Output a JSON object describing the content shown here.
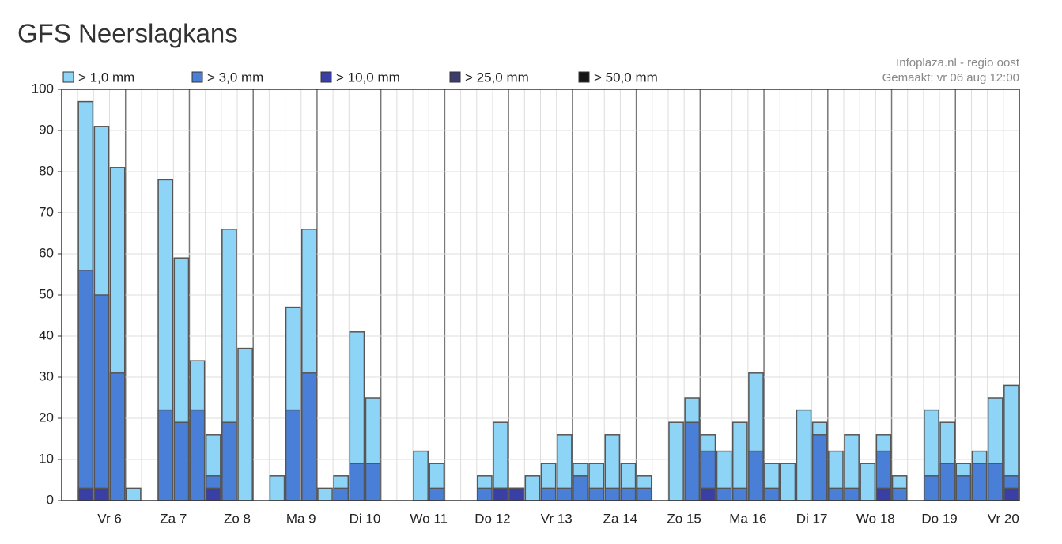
{
  "chart_data": {
    "type": "bar",
    "title": "GFS Neerslagkans",
    "annotations": [
      "Infoplaza.nl - regio oost",
      "Gemaakt: vr 06 aug 12:00"
    ],
    "categories": [
      null,
      null,
      null,
      "Vr 6",
      null,
      null,
      null,
      "Za 7",
      null,
      null,
      null,
      "Zo 8",
      null,
      null,
      null,
      "Ma 9",
      null,
      null,
      null,
      "Di 10",
      null,
      null,
      null,
      "Wo 11",
      null,
      null,
      null,
      "Do 12",
      null,
      null,
      null,
      "Vr 13",
      null,
      null,
      null,
      "Za 14",
      null,
      null,
      null,
      "Zo 15",
      null,
      null,
      null,
      "Ma 16",
      null,
      null,
      null,
      "Di 17",
      null,
      null,
      null,
      "Wo 18",
      null,
      null,
      null,
      "Do 19",
      null,
      null,
      null,
      "Vr 20"
    ],
    "series": [
      {
        "name": "> 1,0 mm",
        "color": "#8dd4f6",
        "values": [
          0,
          97,
          91,
          81,
          3,
          0,
          78,
          59,
          34,
          16,
          66,
          37,
          0,
          6,
          47,
          66,
          3,
          6,
          41,
          25,
          0,
          0,
          12,
          9,
          0,
          0,
          6,
          19,
          3,
          6,
          9,
          16,
          9,
          9,
          16,
          9,
          6,
          0,
          19,
          25,
          16,
          12,
          19,
          31,
          9,
          9,
          22,
          19,
          12,
          16,
          9,
          16,
          6,
          0,
          22,
          19,
          9,
          12,
          25,
          28
        ]
      },
      {
        "name": "> 3,0 mm",
        "color": "#4a7fd8",
        "values": [
          0,
          56,
          50,
          31,
          0,
          0,
          22,
          19,
          22,
          6,
          19,
          0,
          0,
          0,
          22,
          31,
          0,
          3,
          9,
          9,
          0,
          0,
          0,
          3,
          0,
          0,
          3,
          3,
          3,
          0,
          3,
          3,
          6,
          3,
          3,
          3,
          3,
          0,
          0,
          19,
          12,
          3,
          3,
          12,
          3,
          0,
          0,
          16,
          3,
          3,
          0,
          12,
          3,
          0,
          6,
          9,
          6,
          9,
          9,
          6
        ]
      },
      {
        "name": "> 10,0 mm",
        "color": "#3a3fa6",
        "values": [
          0,
          3,
          3,
          0,
          0,
          0,
          0,
          0,
          0,
          3,
          0,
          0,
          0,
          0,
          0,
          0,
          0,
          0,
          0,
          0,
          0,
          0,
          0,
          0,
          0,
          0,
          0,
          3,
          3,
          0,
          0,
          0,
          0,
          0,
          0,
          0,
          0,
          0,
          0,
          0,
          3,
          0,
          0,
          0,
          0,
          0,
          0,
          0,
          0,
          0,
          0,
          3,
          0,
          0,
          0,
          0,
          0,
          0,
          0,
          3
        ]
      },
      {
        "name": "> 25,0 mm",
        "color": "#3c3d6e",
        "values": [
          0,
          0,
          0,
          0,
          0,
          0,
          0,
          0,
          0,
          0,
          0,
          0,
          0,
          0,
          0,
          0,
          0,
          0,
          0,
          0,
          0,
          0,
          0,
          0,
          0,
          0,
          0,
          0,
          0,
          0,
          0,
          0,
          0,
          0,
          0,
          0,
          0,
          0,
          0,
          0,
          0,
          0,
          0,
          0,
          0,
          0,
          0,
          0,
          0,
          0,
          0,
          0,
          0,
          0,
          0,
          0,
          0,
          0,
          0,
          0
        ]
      },
      {
        "name": "> 50,0 mm",
        "color": "#151515",
        "values": [
          0,
          0,
          0,
          0,
          0,
          0,
          0,
          0,
          0,
          0,
          0,
          0,
          0,
          0,
          0,
          0,
          0,
          0,
          0,
          0,
          0,
          0,
          0,
          0,
          0,
          0,
          0,
          0,
          0,
          0,
          0,
          0,
          0,
          0,
          0,
          0,
          0,
          0,
          0,
          0,
          0,
          0,
          0,
          0,
          0,
          0,
          0,
          0,
          0,
          0,
          0,
          0,
          0,
          0,
          0,
          0,
          0,
          0,
          0,
          0
        ]
      }
    ],
    "ylim": [
      0,
      100
    ],
    "yticks": [
      0,
      10,
      20,
      30,
      40,
      50,
      60,
      70,
      80,
      90,
      100
    ],
    "grid": true
  }
}
